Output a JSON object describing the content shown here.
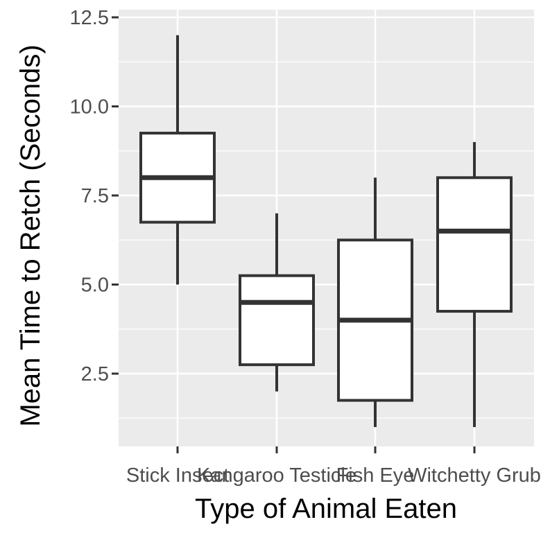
{
  "chart_data": {
    "type": "boxplot",
    "title": "",
    "xlabel": "Type of Animal Eaten",
    "ylabel": "Mean Time to Retch (Seconds)",
    "categories": [
      "Stick Insect",
      "Kangaroo Testicle",
      "Fish Eye",
      "Witchetty Grub"
    ],
    "boxes": [
      {
        "category": "Stick Insect",
        "min": 5.0,
        "q1": 6.75,
        "median": 8.0,
        "q3": 9.25,
        "max": 12.0
      },
      {
        "category": "Kangaroo Testicle",
        "min": 2.0,
        "q1": 2.75,
        "median": 4.5,
        "q3": 5.25,
        "max": 7.0
      },
      {
        "category": "Fish Eye",
        "min": 1.0,
        "q1": 1.75,
        "median": 4.0,
        "q3": 6.25,
        "max": 8.0
      },
      {
        "category": "Witchetty Grub",
        "min": 1.0,
        "q1": 4.25,
        "median": 6.5,
        "q3": 8.0,
        "max": 9.0
      }
    ],
    "y_ticks": [
      2.5,
      5.0,
      7.5,
      10.0,
      12.5
    ],
    "y_tick_labels": [
      "2.5",
      "5.0",
      "7.5",
      "10.0",
      "12.5"
    ],
    "ylim": [
      0.5,
      12.5
    ],
    "grid": true,
    "colors": {
      "panel": "#ebebeb",
      "grid": "#ffffff",
      "box_fill": "#ffffff",
      "box_line": "#333333",
      "tick": "#333333",
      "tick_text": "#4d4d4d"
    }
  }
}
